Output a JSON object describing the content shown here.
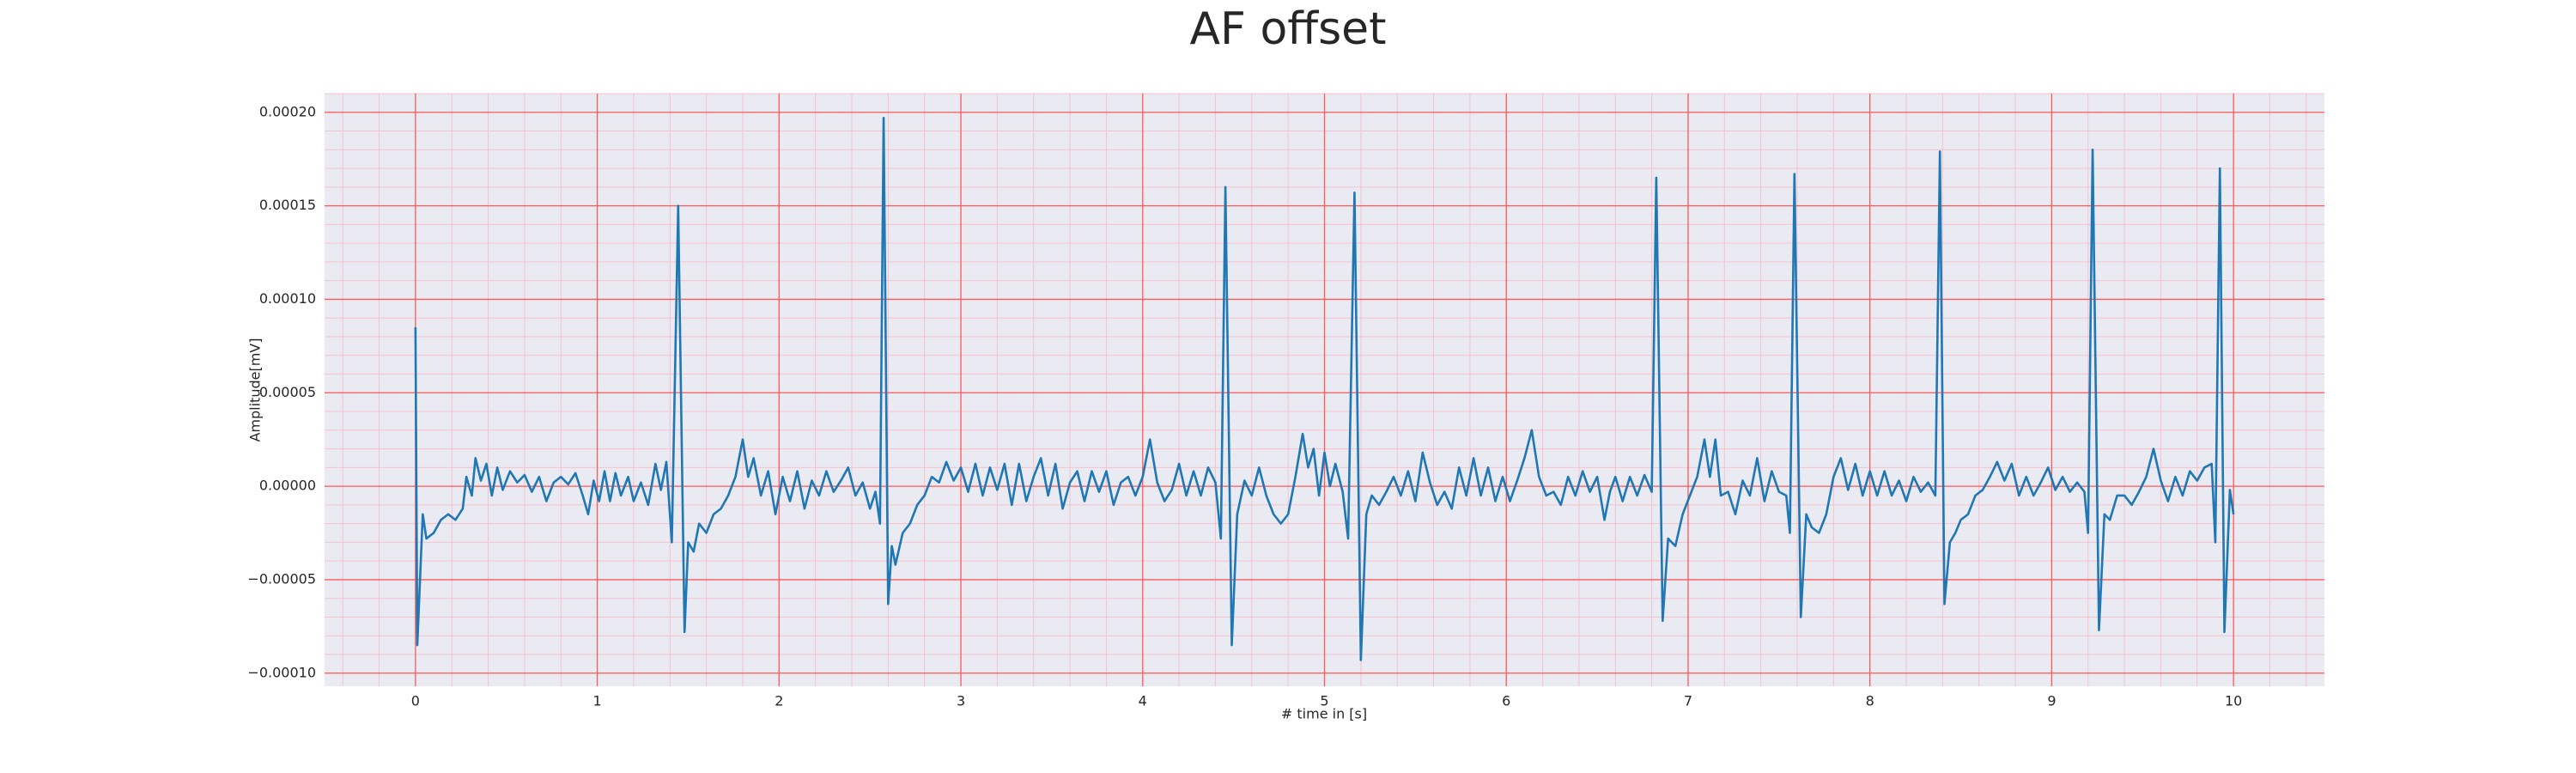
{
  "chart_data": {
    "type": "line",
    "title": "AF offset",
    "x_label": "# time in [s]",
    "y_label": "Amplitude[mV]",
    "color": "#1f77b4",
    "background": "#eaeaf2",
    "grid": true,
    "major_grid_color": "#ff5a5a",
    "minor_grid": true,
    "minor_divisions": 5,
    "minor_grid_color": "#f5c2cc",
    "xlim": [
      -0.5,
      10.5
    ],
    "ylim": [
      -0.000107,
      0.00021
    ],
    "xticks": [
      0,
      1,
      2,
      3,
      4,
      5,
      6,
      7,
      8,
      9,
      10
    ],
    "yticks": [
      {
        "value": -0.0001,
        "label": "−0.00010"
      },
      {
        "value": -5e-05,
        "label": "−0.00005"
      },
      {
        "value": 0,
        "label": "0.00000"
      },
      {
        "value": 5e-05,
        "label": "0.00005"
      },
      {
        "value": 0.0001,
        "label": "0.00010"
      },
      {
        "value": 0.00015,
        "label": "0.00015"
      },
      {
        "value": 0.0002,
        "label": "0.00020"
      }
    ],
    "x": [
      0,
      0.01,
      0.04,
      0.06,
      0.1,
      0.14,
      0.18,
      0.22,
      0.26,
      0.28,
      0.31,
      0.33,
      0.36,
      0.39,
      0.42,
      0.45,
      0.48,
      0.52,
      0.56,
      0.6,
      0.64,
      0.68,
      0.72,
      0.76,
      0.8,
      0.84,
      0.88,
      0.92,
      0.95,
      0.98,
      1.01,
      1.04,
      1.07,
      1.1,
      1.13,
      1.17,
      1.2,
      1.24,
      1.28,
      1.32,
      1.35,
      1.38,
      1.41,
      1.445,
      1.48,
      1.5,
      1.53,
      1.56,
      1.6,
      1.64,
      1.68,
      1.72,
      1.76,
      1.8,
      1.83,
      1.86,
      1.9,
      1.94,
      1.98,
      2.02,
      2.06,
      2.1,
      2.14,
      2.18,
      2.22,
      2.26,
      2.3,
      2.34,
      2.38,
      2.42,
      2.46,
      2.5,
      2.53,
      2.555,
      2.575,
      2.6,
      2.62,
      2.64,
      2.68,
      2.72,
      2.76,
      2.8,
      2.84,
      2.88,
      2.92,
      2.96,
      3.0,
      3.04,
      3.08,
      3.12,
      3.16,
      3.2,
      3.24,
      3.28,
      3.32,
      3.36,
      3.4,
      3.44,
      3.48,
      3.52,
      3.56,
      3.6,
      3.64,
      3.68,
      3.72,
      3.76,
      3.8,
      3.84,
      3.88,
      3.92,
      3.96,
      4.0,
      4.04,
      4.08,
      4.12,
      4.16,
      4.2,
      4.24,
      4.28,
      4.32,
      4.36,
      4.4,
      4.43,
      4.455,
      4.49,
      4.52,
      4.56,
      4.6,
      4.64,
      4.68,
      4.72,
      4.76,
      4.8,
      4.84,
      4.88,
      4.91,
      4.94,
      4.97,
      5.0,
      5.03,
      5.06,
      5.1,
      5.13,
      5.165,
      5.2,
      5.23,
      5.26,
      5.3,
      5.34,
      5.38,
      5.42,
      5.46,
      5.5,
      5.54,
      5.58,
      5.62,
      5.66,
      5.7,
      5.74,
      5.78,
      5.82,
      5.86,
      5.9,
      5.94,
      5.98,
      6.02,
      6.06,
      6.1,
      6.14,
      6.18,
      6.22,
      6.26,
      6.3,
      6.34,
      6.38,
      6.42,
      6.46,
      6.5,
      6.54,
      6.57,
      6.6,
      6.64,
      6.68,
      6.72,
      6.76,
      6.8,
      6.825,
      6.86,
      6.89,
      6.93,
      6.97,
      7.01,
      7.05,
      7.09,
      7.12,
      7.15,
      7.18,
      7.22,
      7.26,
      7.3,
      7.34,
      7.38,
      7.42,
      7.46,
      7.5,
      7.54,
      7.56,
      7.585,
      7.62,
      7.65,
      7.68,
      7.72,
      7.76,
      7.8,
      7.84,
      7.88,
      7.92,
      7.96,
      8.0,
      8.04,
      8.08,
      8.12,
      8.16,
      8.2,
      8.24,
      8.28,
      8.32,
      8.36,
      8.385,
      8.41,
      8.44,
      8.47,
      8.5,
      8.54,
      8.58,
      8.62,
      8.66,
      8.7,
      8.74,
      8.78,
      8.82,
      8.86,
      8.9,
      8.94,
      8.98,
      9.02,
      9.06,
      9.1,
      9.14,
      9.18,
      9.2,
      9.225,
      9.26,
      9.29,
      9.32,
      9.36,
      9.4,
      9.44,
      9.48,
      9.52,
      9.56,
      9.6,
      9.64,
      9.68,
      9.72,
      9.76,
      9.8,
      9.84,
      9.88,
      9.9,
      9.925,
      9.95,
      9.98,
      10.0
    ],
    "values": [
      8.5e-05,
      -8.5e-05,
      -1.5e-05,
      -2.8e-05,
      -2.5e-05,
      -1.8e-05,
      -1.5e-05,
      -1.8e-05,
      -1.2e-05,
      5e-06,
      -5e-06,
      1.5e-05,
      3e-06,
      1.2e-05,
      -5e-06,
      1e-05,
      -2e-06,
      8e-06,
      2e-06,
      6e-06,
      -3e-06,
      5e-06,
      -8e-06,
      2e-06,
      5e-06,
      1e-06,
      7e-06,
      -5e-06,
      -1.5e-05,
      3e-06,
      -8e-06,
      8e-06,
      -8e-06,
      7e-06,
      -5e-06,
      5e-06,
      -8e-06,
      2e-06,
      -1e-05,
      1.2e-05,
      -2e-06,
      1.3e-05,
      -3e-05,
      0.00015,
      -7.8e-05,
      -3e-05,
      -3.5e-05,
      -2e-05,
      -2.5e-05,
      -1.5e-05,
      -1.2e-05,
      -5e-06,
      5e-06,
      2.5e-05,
      5e-06,
      1.5e-05,
      -5e-06,
      8e-06,
      -1.5e-05,
      5e-06,
      -8e-06,
      8e-06,
      -1.2e-05,
      3e-06,
      -5e-06,
      8e-06,
      -3e-06,
      3e-06,
      1e-05,
      -5e-06,
      2e-06,
      -1.2e-05,
      -3e-06,
      -2e-05,
      0.000197,
      -6.3e-05,
      -3.2e-05,
      -4.2e-05,
      -2.5e-05,
      -2e-05,
      -1e-05,
      -5e-06,
      5e-06,
      2e-06,
      1.3e-05,
      3e-06,
      1e-05,
      -3e-06,
      1.2e-05,
      -5e-06,
      1e-05,
      -2e-06,
      1.2e-05,
      -1e-05,
      1.2e-05,
      -8e-06,
      5e-06,
      1.5e-05,
      -5e-06,
      1.2e-05,
      -1.2e-05,
      2e-06,
      8e-06,
      -8e-06,
      8e-06,
      -3e-06,
      8e-06,
      -1e-05,
      2e-06,
      5e-06,
      -5e-06,
      5e-06,
      2.5e-05,
      2e-06,
      -8e-06,
      -2e-06,
      1.2e-05,
      -5e-06,
      8e-06,
      -5e-06,
      1e-05,
      2e-06,
      -2.8e-05,
      0.00016,
      -8.5e-05,
      -1.5e-05,
      3e-06,
      -5e-06,
      1e-05,
      -5e-06,
      -1.5e-05,
      -2e-05,
      -1.5e-05,
      5e-06,
      2.8e-05,
      1e-05,
      2e-05,
      -5e-06,
      1.8e-05,
      0,
      1.2e-05,
      -3e-06,
      -2.8e-05,
      0.000157,
      -9.3e-05,
      -1.5e-05,
      -5e-06,
      -1e-05,
      -3e-06,
      5e-06,
      -5e-06,
      8e-06,
      -8e-06,
      1.8e-05,
      2e-06,
      -1e-05,
      -3e-06,
      -1.2e-05,
      1e-05,
      -5e-06,
      1.5e-05,
      -5e-06,
      1e-05,
      -8e-06,
      5e-06,
      -8e-06,
      3e-06,
      1.5e-05,
      3e-05,
      5e-06,
      -5e-06,
      -3e-06,
      -1e-05,
      5e-06,
      -5e-06,
      8e-06,
      -3e-06,
      5e-06,
      -1.8e-05,
      -3e-06,
      5e-06,
      -8e-06,
      5e-06,
      -5e-06,
      6e-06,
      -3e-06,
      0.000165,
      -7.2e-05,
      -2.8e-05,
      -3.2e-05,
      -1.5e-05,
      -5e-06,
      5e-06,
      2.5e-05,
      5e-06,
      2.5e-05,
      -5e-06,
      -3e-06,
      -1.5e-05,
      3e-06,
      -5e-06,
      1.5e-05,
      -8e-06,
      8e-06,
      -3e-06,
      -5e-06,
      -2.5e-05,
      0.000167,
      -7e-05,
      -1.5e-05,
      -2.2e-05,
      -2.5e-05,
      -1.5e-05,
      5e-06,
      1.5e-05,
      -2e-06,
      1.2e-05,
      -5e-06,
      8e-06,
      -5e-06,
      8e-06,
      -5e-06,
      3e-06,
      -8e-06,
      5e-06,
      -3e-06,
      2e-06,
      -5e-06,
      0.000179,
      -6.3e-05,
      -3e-05,
      -2.5e-05,
      -1.8e-05,
      -1.5e-05,
      -5e-06,
      -2e-06,
      5e-06,
      1.3e-05,
      3e-06,
      1.2e-05,
      -5e-06,
      5e-06,
      -5e-06,
      2e-06,
      1e-05,
      -2e-06,
      5e-06,
      -3e-06,
      2e-06,
      -3e-06,
      -2.5e-05,
      0.00018,
      -7.7e-05,
      -1.5e-05,
      -1.8e-05,
      -5e-06,
      -5e-06,
      -1e-05,
      -3e-06,
      5e-06,
      2e-05,
      3e-06,
      -8e-06,
      5e-06,
      -5e-06,
      8e-06,
      3e-06,
      1e-05,
      1.2e-05,
      -3e-05,
      0.00017,
      -7.8e-05,
      -2e-06,
      -1.5e-05
    ]
  }
}
